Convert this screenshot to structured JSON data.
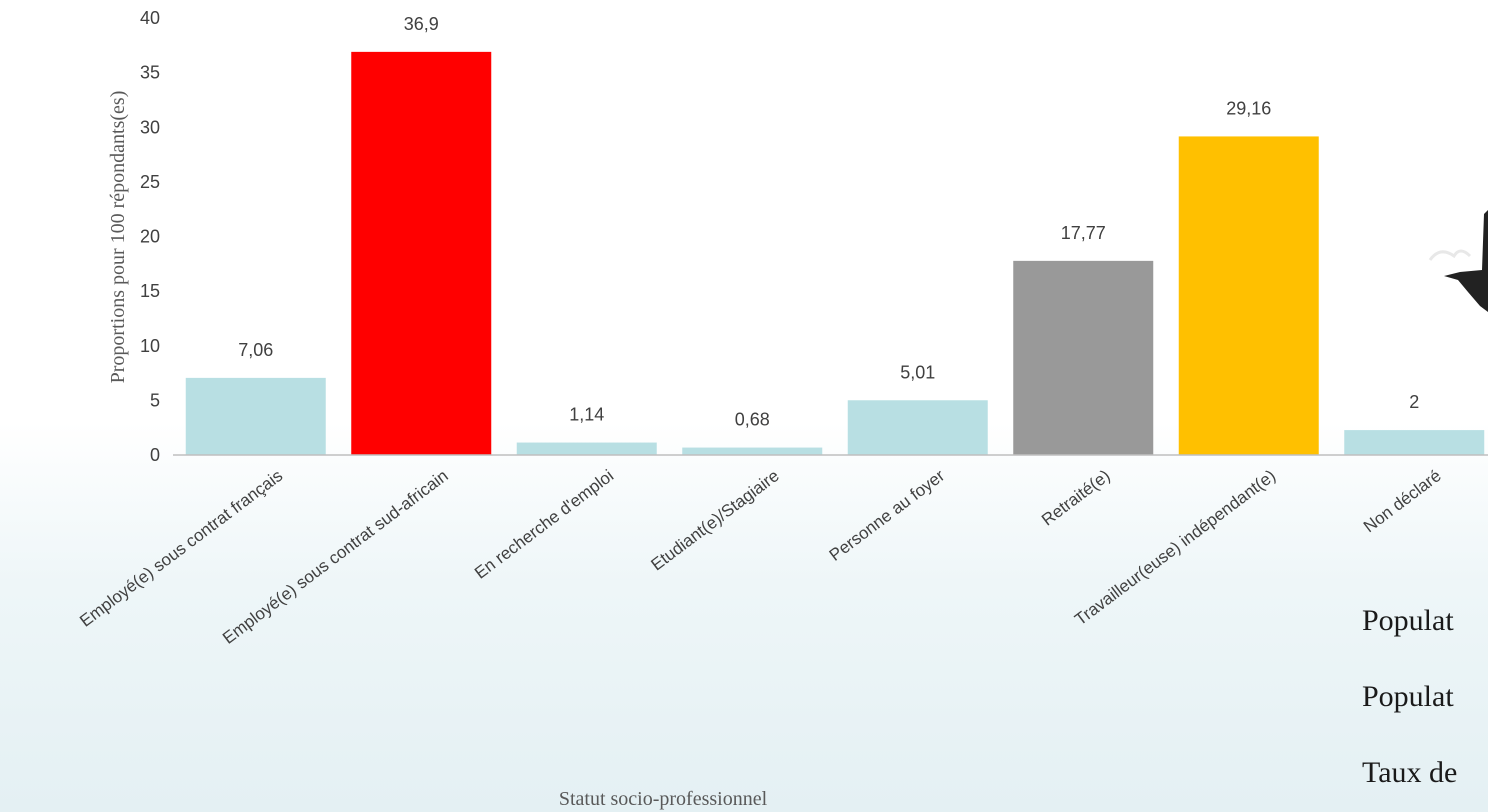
{
  "chart_data": {
    "type": "bar",
    "categories": [
      "Employé(e) sous contrat français",
      "Employé(e) sous contrat sud-africain",
      "En recherche d'emploi",
      "Etudiant(e)/Stagiaire",
      "Personne au foyer",
      "Retraité(e)",
      "Travailleur(euse) indépendant(e)",
      "Non déclaré"
    ],
    "values": [
      7.06,
      36.9,
      1.14,
      0.68,
      5.01,
      17.77,
      29.16,
      2.28
    ],
    "data_labels": [
      "7,06",
      "36,9",
      "1,14",
      "0,68",
      "5,01",
      "17,77",
      "29,16",
      "2"
    ],
    "colors": [
      "#b8dfe3",
      "#ff0000",
      "#b8dfe3",
      "#b8dfe3",
      "#b8dfe3",
      "#999999",
      "#ffc000",
      "#b8dfe3"
    ],
    "title": "",
    "xlabel": "Statut socio-professionnel",
    "ylabel": "Proportions pour 100 répondants(es)",
    "ylim": [
      0,
      40
    ],
    "yticks": [
      0,
      5,
      10,
      15,
      20,
      25,
      30,
      35,
      40
    ],
    "grid": false
  },
  "side_text": [
    "Populat",
    "Populat",
    "Taux de"
  ]
}
